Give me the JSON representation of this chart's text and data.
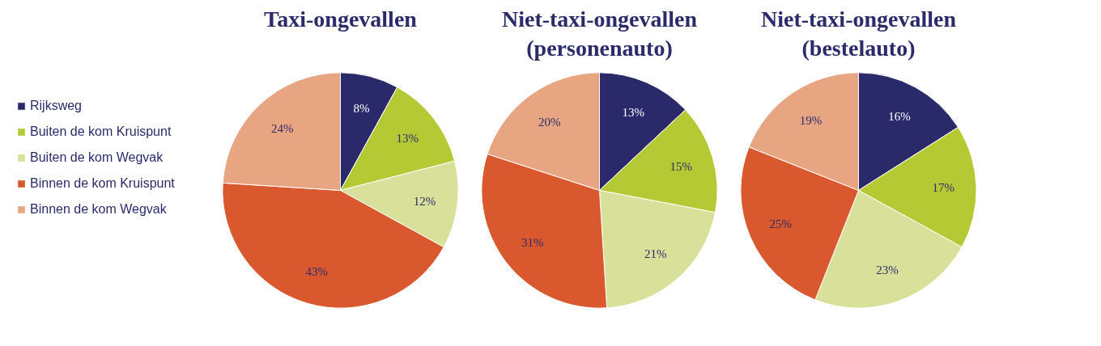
{
  "chart_data": [
    {
      "type": "pie",
      "title": "Taxi-ongevallen",
      "legend": "left",
      "categories": [
        "Rijksweg",
        "Buiten de kom Kruispunt",
        "Buiten de kom Wegvak",
        "Binnen de kom Kruispunt",
        "Binnen de kom Wegvak"
      ],
      "values": [
        8,
        13,
        12,
        43,
        24
      ],
      "value_labels": [
        "8%",
        "13%",
        "12%",
        "43%",
        "24%"
      ],
      "colors": [
        "#2a2a6b",
        "#b5c935",
        "#d8e09a",
        "#d9582e",
        "#e8a582"
      ]
    },
    {
      "type": "pie",
      "title": "Niet-taxi-ongevallen (personenauto)",
      "categories": [
        null,
        null,
        null,
        null,
        null
      ],
      "values": [
        13,
        15,
        21,
        31,
        20
      ],
      "value_labels": [
        "13%",
        "15%",
        "21%",
        "31%",
        "20%"
      ],
      "colors": [
        "#2a2a6b",
        "#b5c935",
        "#d8e09a",
        "#d9582e",
        "#e8a582"
      ]
    },
    {
      "type": "pie",
      "title": "Niet-taxi-ongevallen (bestelauto)",
      "categories": [
        null,
        null,
        null,
        null,
        null
      ],
      "values": [
        16,
        17,
        23,
        25,
        19
      ],
      "value_labels": [
        "16%",
        "17%",
        "23%",
        "25%",
        "19%"
      ],
      "colors": [
        "#2a2a6b",
        "#b5c935",
        "#d8e09a",
        "#d9582e",
        "#e8a582"
      ]
    }
  ]
}
